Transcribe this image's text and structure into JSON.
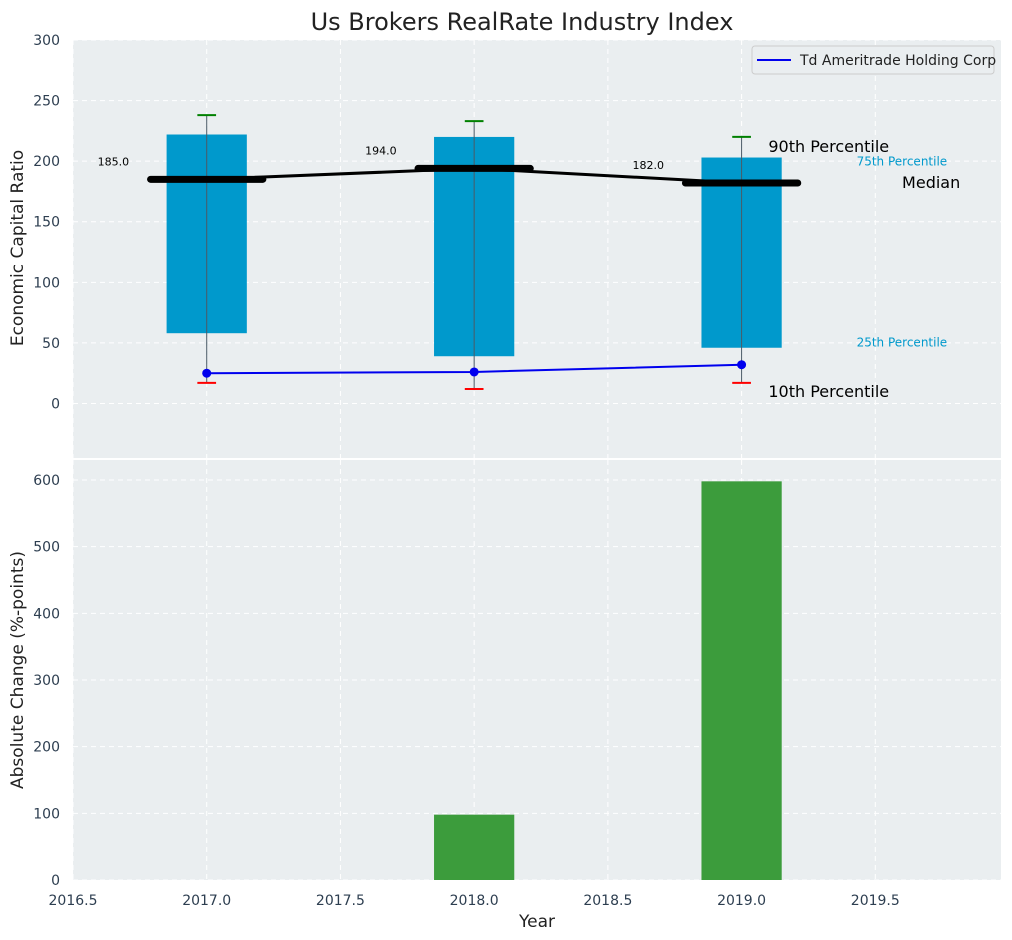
{
  "title": "Us Brokers RealRate Industry Index",
  "chart_data": [
    {
      "type": "bar",
      "subtype": "box-percentile",
      "panel": "top",
      "ylabel": "Economic Capital Ratio",
      "ylim": [
        -45,
        300
      ],
      "yticks": [
        0,
        50,
        100,
        150,
        200,
        250,
        300
      ],
      "grid": true,
      "legend": {
        "placement": "top-right",
        "entries": [
          "Td Ameritrade Holding Corp"
        ]
      },
      "x": [
        2017,
        2018,
        2019
      ],
      "p10": [
        17,
        12,
        17
      ],
      "p25": [
        58,
        39,
        46
      ],
      "median": [
        185,
        194,
        182
      ],
      "p75": [
        222,
        220,
        203
      ],
      "p90": [
        238,
        233,
        220
      ],
      "median_labels": [
        "185.0",
        "194.0",
        "182.0"
      ],
      "series": [
        {
          "name": "Td Ameritrade Holding Corp",
          "color": "#0000ee",
          "values": [
            25,
            26,
            32
          ]
        }
      ],
      "annotations": {
        "p90": "90th Percentile",
        "p75": "75th Percentile",
        "median": "Median",
        "p25": "25th Percentile",
        "p10": "10th Percentile"
      },
      "colors": {
        "box": "#0099cc",
        "median": "#000000",
        "p90_cap": "#008000",
        "p10_cap": "#ff0000",
        "annotation_blue": "#0099cc"
      }
    },
    {
      "type": "bar",
      "panel": "bottom",
      "xlabel": "Year",
      "ylabel": "Absolute Change (%-points)",
      "xlim": [
        2016.5,
        2019.97
      ],
      "xticks": [
        "2016.5",
        "2017.0",
        "2017.5",
        "2018.0",
        "2018.5",
        "2019.0",
        "2019.5"
      ],
      "ylim": [
        0,
        630
      ],
      "yticks": [
        0,
        100,
        200,
        300,
        400,
        500,
        600
      ],
      "grid": true,
      "x": [
        2017,
        2018,
        2019
      ],
      "values": [
        0,
        98,
        598
      ],
      "colors": {
        "bar": "#3c9c3c"
      }
    }
  ],
  "colors": {
    "panel_bg": "#eaeef0",
    "grid": "#ffffff",
    "tick_text": "#2d3e50"
  }
}
